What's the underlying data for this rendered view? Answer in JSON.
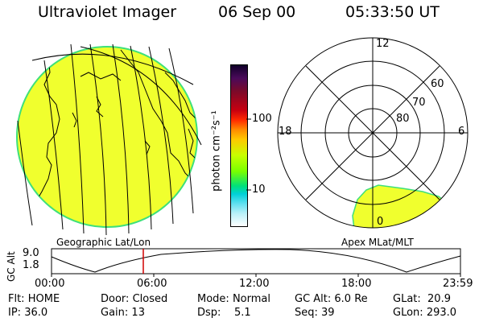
{
  "header": {
    "instrument": "Ultraviolet Imager",
    "date": "06 Sep 00",
    "time": "05:33:50 UT"
  },
  "colorbar": {
    "unit_label": "photon cm⁻²s⁻¹",
    "ticks": [
      "100",
      "10"
    ],
    "colors": [
      "#10002a",
      "#4a0a5a",
      "#7a0a2a",
      "#c80010",
      "#ff2a00",
      "#ff8a00",
      "#ffc800",
      "#c8ff00",
      "#78ff00",
      "#00e07a",
      "#00d0d8",
      "#60e0f0",
      "#b8f0f8",
      "#ffffff"
    ]
  },
  "geo_panel": {
    "label": "Geographic Lat/Lon",
    "fill_color": "#f0ff2e",
    "edge_color": "#3ee07a"
  },
  "apex_panel": {
    "label": "Apex MLat/MLT",
    "mlt_labels": [
      "12",
      "18",
      "6",
      "0"
    ],
    "mlat_labels": [
      "60",
      "70",
      "80"
    ],
    "fill_color": "#f0ff2e",
    "edge_color": "#3ee07a"
  },
  "altitude_plot": {
    "axis_label": "GC Alt",
    "y_ticks": [
      "9.0",
      "1.8"
    ],
    "x_ticks": [
      "00:00",
      "06:00",
      "12:00",
      "18:00",
      "23:59"
    ],
    "cursor_color": "#d00000"
  },
  "status": {
    "row1": [
      {
        "label": "Flt:",
        "value": "HOME"
      },
      {
        "label": "Door:",
        "value": "Closed"
      },
      {
        "label": "Mode:",
        "value": "Normal"
      },
      {
        "label": "GC Alt:",
        "value": "6.0 Re"
      },
      {
        "label": "GLat:",
        "value": "20.9"
      }
    ],
    "row2": [
      {
        "label": "IP:",
        "value": "36.0"
      },
      {
        "label": "Gain:",
        "value": "13"
      },
      {
        "label": "Dsp:",
        "value": "5.1"
      },
      {
        "label": "Seq:",
        "value": "39"
      },
      {
        "label": "GLon:",
        "value": "293.0"
      }
    ]
  }
}
